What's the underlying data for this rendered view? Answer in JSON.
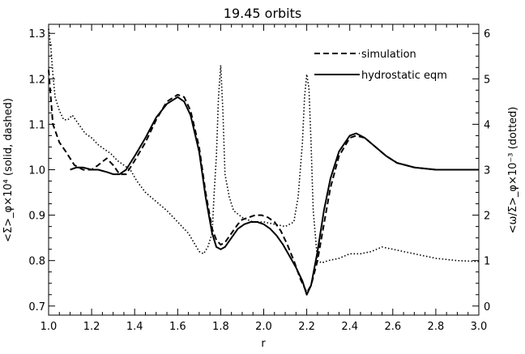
{
  "chart_data": {
    "type": "line",
    "title": "19.45 orbits",
    "xlabel": "r",
    "ylabel_left": "<Σ>_φ×10⁴ (solid, dashed)",
    "ylabel_right": "<ω/Σ>_φ×10⁻³ (dotted)",
    "xlim": [
      1.0,
      3.0
    ],
    "ylim_left": [
      0.68,
      1.32
    ],
    "ylim_right": [
      -0.2,
      6.2
    ],
    "x_ticks": [
      "1.0",
      "1.2",
      "1.4",
      "1.6",
      "1.8",
      "2.0",
      "2.2",
      "2.4",
      "2.6",
      "2.8",
      "3.0"
    ],
    "y_ticks_left": [
      "0.7",
      "0.8",
      "0.9",
      "1.0",
      "1.1",
      "1.2",
      "1.3"
    ],
    "y_ticks_right": [
      "0",
      "1",
      "2",
      "3",
      "4",
      "5",
      "6"
    ],
    "legend_position": "top-right",
    "series": [
      {
        "name": "simulation",
        "axis": "left",
        "style": "dashed",
        "x": [
          1.0,
          1.02,
          1.05,
          1.08,
          1.12,
          1.16,
          1.2,
          1.23,
          1.27,
          1.3,
          1.33,
          1.36,
          1.4,
          1.45,
          1.5,
          1.55,
          1.6,
          1.63,
          1.66,
          1.7,
          1.73,
          1.76,
          1.78,
          1.8,
          1.82,
          1.85,
          1.88,
          1.9,
          1.93,
          1.96,
          1.99,
          2.02,
          2.05,
          2.08,
          2.11,
          2.14,
          2.17,
          2.2,
          2.22,
          2.25,
          2.28,
          2.31,
          2.35,
          2.4,
          2.43,
          2.47,
          2.52,
          2.57,
          2.62,
          2.7,
          2.8,
          2.9,
          3.0
        ],
        "y": [
          1.22,
          1.1,
          1.06,
          1.04,
          1.01,
          1.0,
          1.0,
          1.01,
          1.025,
          1.01,
          0.99,
          0.99,
          1.02,
          1.06,
          1.11,
          1.15,
          1.165,
          1.16,
          1.13,
          1.05,
          0.95,
          0.87,
          0.845,
          0.835,
          0.84,
          0.86,
          0.88,
          0.89,
          0.895,
          0.9,
          0.9,
          0.895,
          0.885,
          0.865,
          0.835,
          0.8,
          0.76,
          0.73,
          0.745,
          0.8,
          0.88,
          0.96,
          1.03,
          1.07,
          1.075,
          1.07,
          1.05,
          1.03,
          1.015,
          1.005,
          1.0,
          1.0,
          1.0
        ]
      },
      {
        "name": "hydrostatic eqm",
        "axis": "left",
        "style": "solid",
        "x": [
          1.1,
          1.13,
          1.16,
          1.2,
          1.23,
          1.27,
          1.3,
          1.33,
          1.36,
          1.4,
          1.45,
          1.5,
          1.55,
          1.6,
          1.63,
          1.66,
          1.7,
          1.73,
          1.76,
          1.78,
          1.8,
          1.82,
          1.85,
          1.88,
          1.91,
          1.94,
          1.97,
          2.0,
          2.03,
          2.06,
          2.09,
          2.12,
          2.15,
          2.18,
          2.2,
          2.22,
          2.25,
          2.28,
          2.31,
          2.35,
          2.4,
          2.43,
          2.47,
          2.52,
          2.57,
          2.62,
          2.7,
          2.8,
          2.9,
          3.0
        ],
        "y": [
          1.0,
          1.005,
          1.005,
          1.0,
          1.0,
          0.995,
          0.99,
          0.99,
          1.0,
          1.03,
          1.07,
          1.115,
          1.145,
          1.16,
          1.15,
          1.12,
          1.04,
          0.94,
          0.86,
          0.83,
          0.825,
          0.83,
          0.85,
          0.87,
          0.88,
          0.885,
          0.885,
          0.88,
          0.87,
          0.855,
          0.835,
          0.81,
          0.785,
          0.755,
          0.725,
          0.745,
          0.82,
          0.91,
          0.98,
          1.04,
          1.075,
          1.08,
          1.07,
          1.05,
          1.03,
          1.015,
          1.005,
          1.0,
          1.0,
          1.0
        ]
      },
      {
        "name": "",
        "axis": "right",
        "style": "dotted",
        "x": [
          1.0,
          1.01,
          1.02,
          1.03,
          1.05,
          1.07,
          1.09,
          1.11,
          1.14,
          1.17,
          1.2,
          1.23,
          1.26,
          1.29,
          1.32,
          1.35,
          1.38,
          1.41,
          1.45,
          1.5,
          1.55,
          1.6,
          1.65,
          1.7,
          1.72,
          1.74,
          1.76,
          1.77,
          1.78,
          1.79,
          1.8,
          1.81,
          1.82,
          1.84,
          1.86,
          1.9,
          1.95,
          2.0,
          2.05,
          2.1,
          2.14,
          2.16,
          2.18,
          2.19,
          2.2,
          2.21,
          2.22,
          2.23,
          2.25,
          2.27,
          2.3,
          2.35,
          2.4,
          2.45,
          2.5,
          2.55,
          2.6,
          2.7,
          2.8,
          2.9,
          3.0
        ],
        "y": [
          6.1,
          5.7,
          5.1,
          4.6,
          4.3,
          4.1,
          4.1,
          4.2,
          4.0,
          3.8,
          3.7,
          3.55,
          3.45,
          3.35,
          3.2,
          3.1,
          3.0,
          2.75,
          2.5,
          2.3,
          2.1,
          1.85,
          1.6,
          1.2,
          1.15,
          1.3,
          1.6,
          2.5,
          3.3,
          4.6,
          5.3,
          4.3,
          2.9,
          2.4,
          2.1,
          1.95,
          1.85,
          1.85,
          1.8,
          1.75,
          1.85,
          2.4,
          3.6,
          4.6,
          5.1,
          4.8,
          3.6,
          2.1,
          1.0,
          0.95,
          1.0,
          1.05,
          1.15,
          1.15,
          1.2,
          1.3,
          1.25,
          1.15,
          1.05,
          1.0,
          0.98
        ]
      }
    ]
  }
}
